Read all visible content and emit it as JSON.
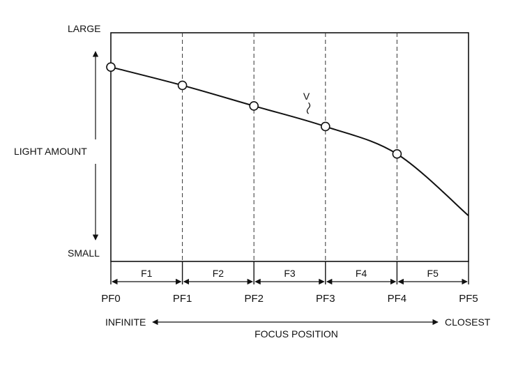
{
  "chart_data": {
    "type": "line",
    "title": "",
    "ylabel": "LIGHT AMOUNT",
    "y_top_label": "LARGE",
    "y_bottom_label": "SMALL",
    "xlabel": "FOCUS POSITION",
    "x_left_label": "INFINITE",
    "x_right_label": "CLOSEST",
    "x_ticks": [
      "PF0",
      "PF1",
      "PF2",
      "PF3",
      "PF4",
      "PF5"
    ],
    "segments": [
      "F1",
      "F2",
      "F3",
      "F4",
      "F5"
    ],
    "series": [
      {
        "name": "V",
        "x": [
          0,
          1,
          2,
          3,
          4,
          5
        ],
        "values": [
          0.85,
          0.77,
          0.68,
          0.59,
          0.47,
          0.2
        ],
        "marked": [
          true,
          true,
          true,
          true,
          true,
          false
        ]
      }
    ],
    "xlim": [
      0,
      5
    ],
    "ylim": [
      0,
      1
    ],
    "grid": "vertical-dashed"
  }
}
